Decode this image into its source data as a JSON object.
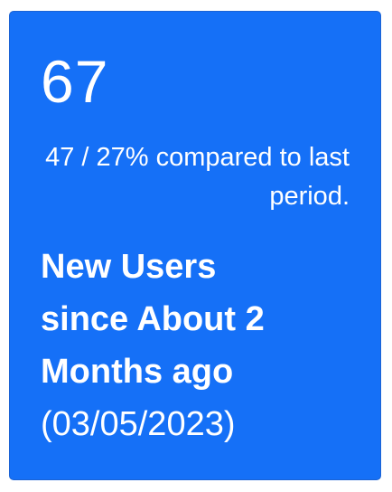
{
  "card": {
    "value": "67",
    "comparison": "47 / 27% compared to last period.",
    "caption_line1": "New Users",
    "caption_line2": "since About 2",
    "caption_line3": "Months ago",
    "caption_line4": "(03/05/2023)",
    "background_color": "#1570f7",
    "text_color": "#ffffff"
  }
}
